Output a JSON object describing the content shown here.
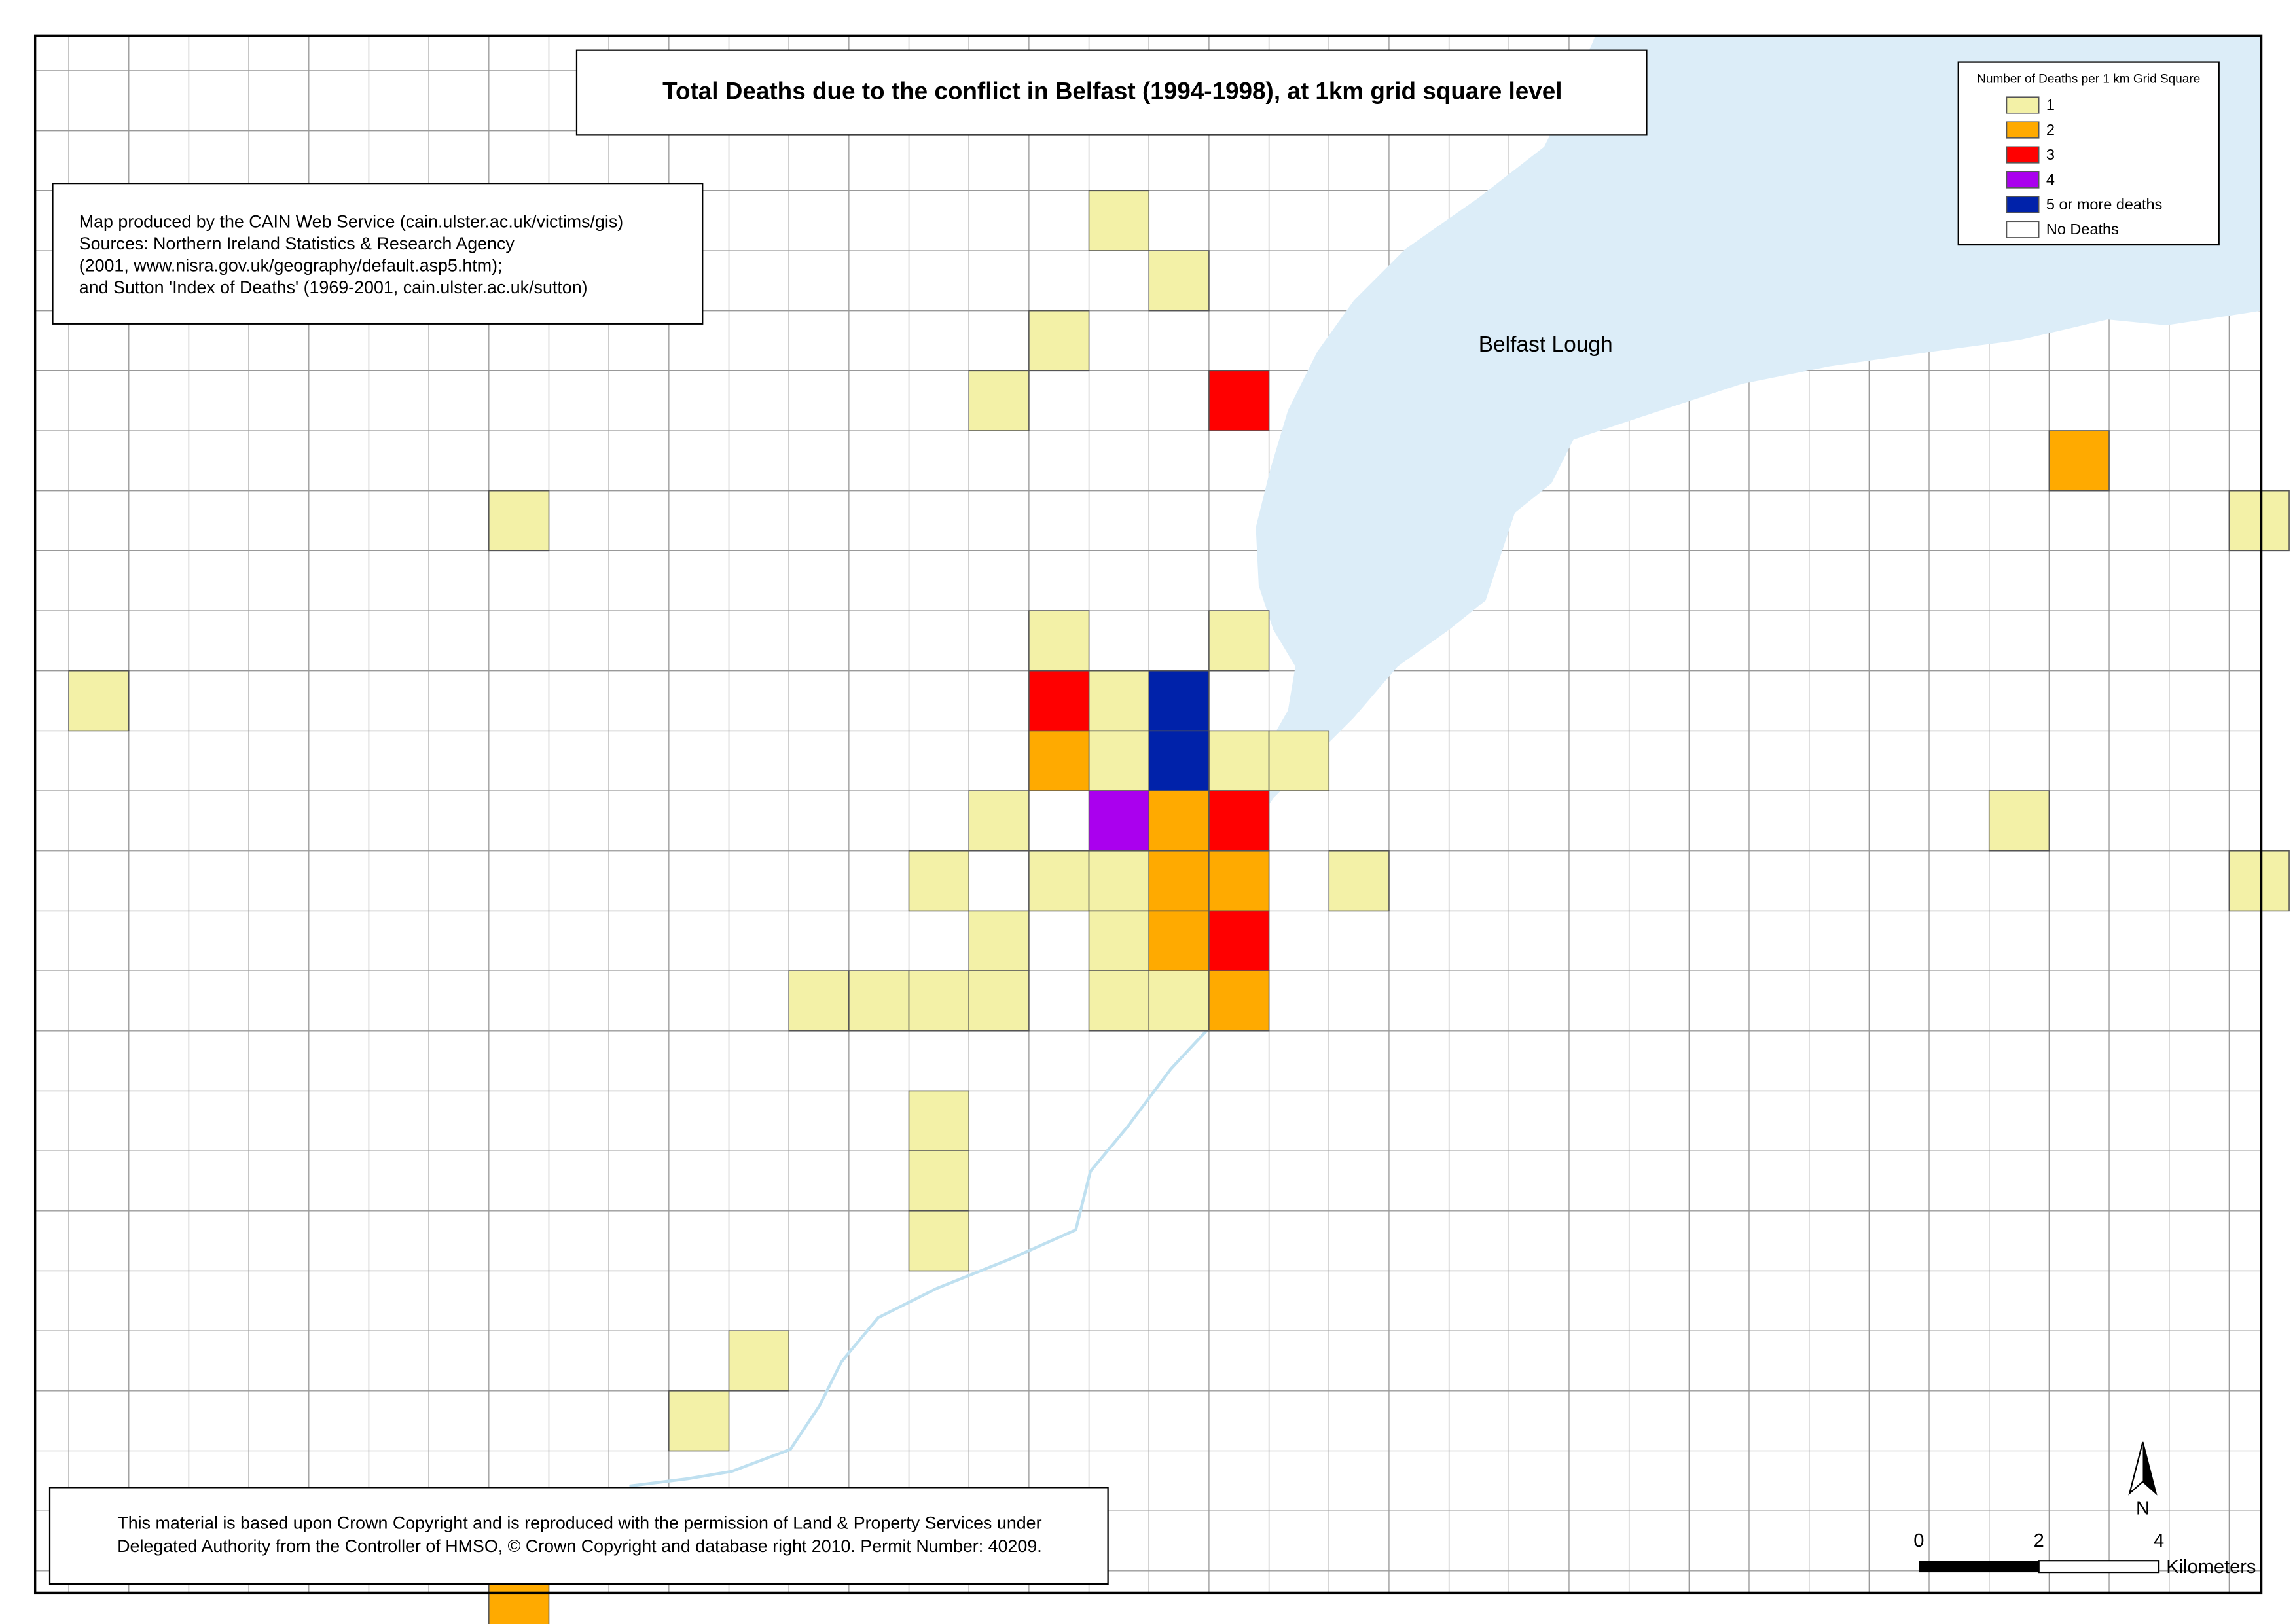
{
  "title": "Total Deaths due to the conflict in Belfast (1994-1998), at 1km grid square level",
  "source_note": {
    "lines": [
      "Map produced by the CAIN Web Service (cain.ulster.ac.uk/victims/gis)",
      "Sources: Northern Ireland Statistics & Research Agency",
      "(2001, www.nisra.gov.uk/geography/default.asp5.htm);",
      "and Sutton 'Index of Deaths' (1969-2001, cain.ulster.ac.uk/sutton)"
    ]
  },
  "copyright_note": {
    "lines": [
      "This material is based upon Crown Copyright and is reproduced with the permission of Land & Property Services under",
      "Delegated Authority from the Controller of HMSO, © Crown Copyright and database right 2010. Permit Number: 40209."
    ]
  },
  "legend": {
    "title": "Number of Deaths per 1 km Grid Square",
    "items": [
      {
        "label": "1",
        "color": "#f3f1a7",
        "cells": [
          [
            18,
            3
          ],
          [
            19,
            4
          ],
          [
            17,
            5
          ],
          [
            16,
            6
          ],
          [
            8,
            8
          ],
          [
            37,
            8
          ],
          [
            17,
            10
          ],
          [
            20,
            10
          ],
          [
            1,
            11
          ],
          [
            18,
            11
          ],
          [
            18,
            12
          ],
          [
            20,
            12
          ],
          [
            21,
            12
          ],
          [
            16,
            13
          ],
          [
            33,
            13
          ],
          [
            15,
            14
          ],
          [
            17,
            14
          ],
          [
            18,
            14
          ],
          [
            22,
            14
          ],
          [
            37,
            14
          ],
          [
            16,
            15
          ],
          [
            18,
            15
          ],
          [
            13,
            16
          ],
          [
            14,
            16
          ],
          [
            15,
            16
          ],
          [
            16,
            16
          ],
          [
            18,
            16
          ],
          [
            19,
            16
          ],
          [
            15,
            18
          ],
          [
            15,
            19
          ],
          [
            15,
            20
          ],
          [
            12,
            22
          ],
          [
            11,
            23
          ]
        ]
      },
      {
        "label": "2",
        "color": "#ffaa00",
        "cells": [
          [
            34,
            7
          ],
          [
            17,
            12
          ],
          [
            19,
            13
          ],
          [
            19,
            14
          ],
          [
            20,
            14
          ],
          [
            19,
            15
          ],
          [
            20,
            16
          ],
          [
            8,
            26
          ]
        ]
      },
      {
        "label": "3",
        "color": "#ff0000",
        "cells": [
          [
            20,
            6
          ],
          [
            17,
            11
          ],
          [
            20,
            13
          ],
          [
            20,
            15
          ]
        ]
      },
      {
        "label": "4",
        "color": "#aa00ee",
        "cells": [
          [
            18,
            13
          ]
        ]
      },
      {
        "label": "5 or more deaths",
        "color": "#0022aa",
        "cells": [
          [
            19,
            11
          ],
          [
            19,
            12
          ]
        ]
      },
      {
        "label": "No Deaths",
        "color": "#ffffff",
        "cells": []
      }
    ]
  },
  "place_label": "Belfast Lough",
  "scale_bar": {
    "labels": [
      "0",
      "2",
      "4"
    ],
    "unit": "Kilometers"
  },
  "north": "N"
}
